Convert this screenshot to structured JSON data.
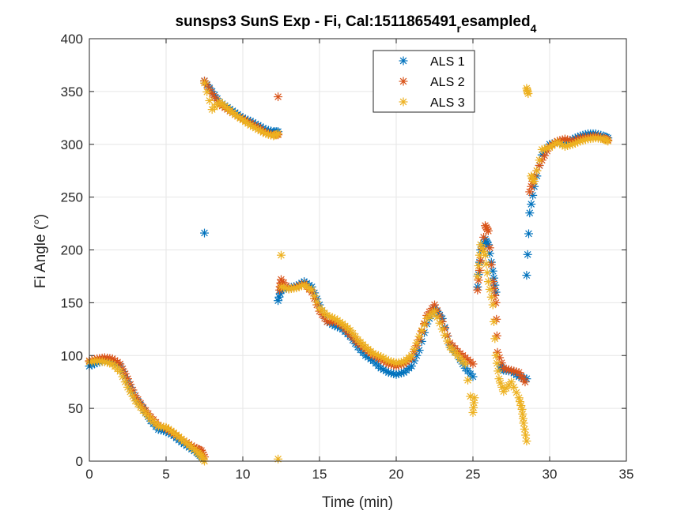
{
  "chart_data": {
    "type": "scatter",
    "title": "sunsps3 SunS Exp - Fi, Cal:1511865491",
    "title_sub": "r",
    "title_mid": "esampled",
    "title_sub2": "4",
    "xlabel": "Time (min)",
    "ylabel": "Fi Angle (°)",
    "xlim": [
      0,
      35
    ],
    "ylim": [
      0,
      400
    ],
    "xticks": [
      0,
      5,
      10,
      15,
      20,
      25,
      30,
      35
    ],
    "yticks": [
      0,
      50,
      100,
      150,
      200,
      250,
      300,
      350,
      400
    ],
    "grid": true,
    "legend_position": "top-right",
    "marker": "asterisk",
    "series": [
      {
        "name": "ALS 1",
        "color": "#0072BD",
        "points": [
          [
            0,
            90
          ],
          [
            0.5,
            93
          ],
          [
            1,
            95
          ],
          [
            1.5,
            94
          ],
          [
            2,
            90
          ],
          [
            2.5,
            75
          ],
          [
            3,
            60
          ],
          [
            3.5,
            50
          ],
          [
            4,
            38
          ],
          [
            4.5,
            30
          ],
          [
            5,
            28
          ],
          [
            5.5,
            24
          ],
          [
            6,
            18
          ],
          [
            6.5,
            13
          ],
          [
            7,
            8
          ],
          [
            7.3,
            4
          ],
          [
            7.5,
            216
          ],
          [
            7.5,
            360
          ],
          [
            8,
            350
          ],
          [
            8.5,
            340
          ],
          [
            9,
            335
          ],
          [
            9.5,
            330
          ],
          [
            10,
            325
          ],
          [
            10.5,
            322
          ],
          [
            11,
            318
          ],
          [
            11.5,
            314
          ],
          [
            12,
            312
          ],
          [
            12.3,
            312
          ],
          [
            12.3,
            152
          ],
          [
            12.5,
            162
          ],
          [
            13,
            164
          ],
          [
            13.5,
            166
          ],
          [
            14,
            170
          ],
          [
            14.5,
            165
          ],
          [
            15,
            148
          ],
          [
            15.5,
            132
          ],
          [
            16,
            128
          ],
          [
            16.5,
            125
          ],
          [
            17,
            118
          ],
          [
            17.5,
            108
          ],
          [
            18,
            100
          ],
          [
            18.5,
            95
          ],
          [
            19,
            88
          ],
          [
            19.5,
            84
          ],
          [
            20,
            82
          ],
          [
            20.5,
            84
          ],
          [
            21,
            90
          ],
          [
            21.5,
            105
          ],
          [
            22,
            130
          ],
          [
            22.5,
            145
          ],
          [
            23,
            135
          ],
          [
            23.5,
            110
          ],
          [
            24,
            100
          ],
          [
            24.5,
            88
          ],
          [
            25,
            80
          ],
          [
            25.3,
            165
          ],
          [
            25.5,
            200
          ],
          [
            25.8,
            210
          ],
          [
            26,
            205
          ],
          [
            26.3,
            180
          ],
          [
            26.5,
            160
          ],
          [
            26.8,
            90
          ],
          [
            27,
            86
          ],
          [
            27.5,
            85
          ],
          [
            28,
            80
          ],
          [
            28.5,
            78
          ],
          [
            28.5,
            176
          ],
          [
            28.7,
            235
          ],
          [
            29,
            260
          ],
          [
            29.5,
            290
          ],
          [
            30,
            300
          ],
          [
            30.5,
            302
          ],
          [
            31,
            300
          ],
          [
            31.5,
            305
          ],
          [
            32,
            308
          ],
          [
            32.5,
            310
          ],
          [
            33,
            310
          ],
          [
            33.5,
            308
          ],
          [
            33.8,
            306
          ]
        ]
      },
      {
        "name": "ALS 2",
        "color": "#D95319",
        "points": [
          [
            0,
            95
          ],
          [
            0.5,
            97
          ],
          [
            1,
            98
          ],
          [
            1.5,
            97
          ],
          [
            2,
            92
          ],
          [
            2.5,
            78
          ],
          [
            3,
            62
          ],
          [
            3.5,
            51
          ],
          [
            4,
            42
          ],
          [
            4.5,
            34
          ],
          [
            5,
            31
          ],
          [
            5.5,
            26
          ],
          [
            6,
            21
          ],
          [
            6.5,
            16
          ],
          [
            7,
            12
          ],
          [
            7.3,
            10
          ],
          [
            7.5,
            4
          ],
          [
            7.5,
            360
          ],
          [
            8,
            348
          ],
          [
            8.5,
            338
          ],
          [
            9,
            333
          ],
          [
            9.5,
            328
          ],
          [
            10,
            324
          ],
          [
            10.5,
            320
          ],
          [
            11,
            316
          ],
          [
            11.5,
            311
          ],
          [
            12,
            309
          ],
          [
            12.3,
            309
          ],
          [
            12.3,
            345
          ],
          [
            12.4,
            162
          ],
          [
            12.5,
            172
          ],
          [
            13,
            163
          ],
          [
            13.5,
            165
          ],
          [
            14,
            168
          ],
          [
            14.5,
            160
          ],
          [
            15,
            142
          ],
          [
            15.5,
            132
          ],
          [
            16,
            132
          ],
          [
            16.5,
            128
          ],
          [
            17,
            120
          ],
          [
            17.5,
            112
          ],
          [
            18,
            106
          ],
          [
            18.5,
            100
          ],
          [
            19,
            96
          ],
          [
            19.5,
            92
          ],
          [
            20,
            90
          ],
          [
            20.5,
            92
          ],
          [
            21,
            98
          ],
          [
            21.5,
            115
          ],
          [
            22,
            138
          ],
          [
            22.5,
            148
          ],
          [
            23,
            132
          ],
          [
            23.5,
            112
          ],
          [
            24,
            104
          ],
          [
            24.5,
            98
          ],
          [
            25,
            92
          ],
          [
            25.3,
            162
          ],
          [
            25.5,
            190
          ],
          [
            25.8,
            223
          ],
          [
            26,
            218
          ],
          [
            26.3,
            170
          ],
          [
            26.5,
            150
          ],
          [
            26.6,
            103
          ],
          [
            27,
            88
          ],
          [
            27.5,
            86
          ],
          [
            28,
            84
          ],
          [
            28.4,
            75
          ],
          [
            28.7,
            255
          ],
          [
            29,
            270
          ],
          [
            29.5,
            285
          ],
          [
            30,
            298
          ],
          [
            30.5,
            303
          ],
          [
            31,
            305
          ],
          [
            31.5,
            303
          ],
          [
            32,
            306
          ],
          [
            32.5,
            307
          ],
          [
            33,
            308
          ],
          [
            33.5,
            306
          ],
          [
            33.8,
            304
          ]
        ]
      },
      {
        "name": "ALS 3",
        "color": "#EDB120",
        "points": [
          [
            0,
            94
          ],
          [
            0.5,
            95
          ],
          [
            1,
            94
          ],
          [
            1.5,
            92
          ],
          [
            2,
            85
          ],
          [
            2.5,
            70
          ],
          [
            3,
            57
          ],
          [
            3.5,
            48
          ],
          [
            4,
            40
          ],
          [
            4.5,
            33
          ],
          [
            5,
            32
          ],
          [
            5.5,
            27
          ],
          [
            6,
            21
          ],
          [
            6.5,
            15
          ],
          [
            7,
            9
          ],
          [
            7.3,
            5
          ],
          [
            7.5,
            0
          ],
          [
            7.5,
            358
          ],
          [
            8,
            333
          ],
          [
            8.5,
            340
          ],
          [
            9,
            334
          ],
          [
            9.5,
            328
          ],
          [
            10,
            323
          ],
          [
            10.5,
            318
          ],
          [
            11,
            314
          ],
          [
            11.5,
            310
          ],
          [
            12,
            308
          ],
          [
            12.3,
            310
          ],
          [
            12.3,
            2
          ],
          [
            12.5,
            195
          ],
          [
            12.5,
            165
          ],
          [
            13,
            163
          ],
          [
            13.5,
            164
          ],
          [
            14,
            167
          ],
          [
            14.5,
            162
          ],
          [
            15,
            145
          ],
          [
            15.5,
            138
          ],
          [
            16,
            135
          ],
          [
            16.5,
            130
          ],
          [
            17,
            124
          ],
          [
            17.5,
            115
          ],
          [
            18,
            108
          ],
          [
            18.5,
            102
          ],
          [
            19,
            99
          ],
          [
            19.5,
            95
          ],
          [
            20,
            93
          ],
          [
            20.5,
            94
          ],
          [
            21,
            100
          ],
          [
            21.5,
            118
          ],
          [
            22,
            135
          ],
          [
            22.5,
            142
          ],
          [
            23,
            125
          ],
          [
            23.5,
            108
          ],
          [
            24,
            100
          ],
          [
            24.5,
            92
          ],
          [
            25,
            46
          ],
          [
            25.1,
            60
          ],
          [
            25.3,
            175
          ],
          [
            25.5,
            205
          ],
          [
            25.8,
            195
          ],
          [
            26,
            170
          ],
          [
            26.3,
            148
          ],
          [
            26.5,
            100
          ],
          [
            26.7,
            78
          ],
          [
            27,
            66
          ],
          [
            27.5,
            75
          ],
          [
            28,
            60
          ],
          [
            28.2,
            49
          ],
          [
            28.3,
            36
          ],
          [
            28.5,
            19
          ],
          [
            28.5,
            353
          ],
          [
            28.6,
            348
          ],
          [
            28.8,
            270
          ],
          [
            29,
            265
          ],
          [
            29.5,
            295
          ],
          [
            30,
            297
          ],
          [
            30.5,
            302
          ],
          [
            31,
            298
          ],
          [
            31.5,
            300
          ],
          [
            32,
            303
          ],
          [
            32.5,
            305
          ],
          [
            33,
            306
          ],
          [
            33.5,
            305
          ],
          [
            33.8,
            303
          ]
        ]
      }
    ]
  }
}
